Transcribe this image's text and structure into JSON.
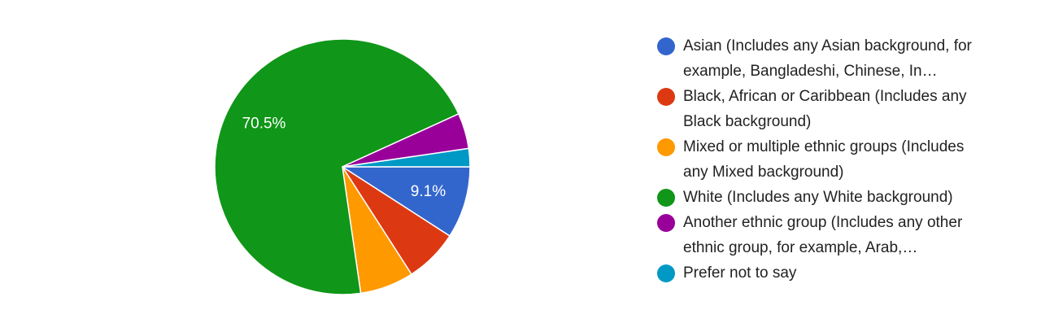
{
  "chart_data": {
    "type": "pie",
    "categories": [
      "Asian (Includes any Asian background, for example, Bangladeshi, Chinese, In…",
      "Black, African or Caribbean (Includes any Black background)",
      "Mixed or multiple ethnic groups (Includes any Mixed background)",
      "White (Includes any White background)",
      "Another ethnic group (Includes any other ethnic group, for example, Arab,…",
      "Prefer not to say"
    ],
    "values": [
      9.1,
      6.8,
      6.8,
      70.5,
      4.5,
      2.3
    ],
    "value_labels": [
      "9.1%",
      null,
      null,
      "70.5%",
      null,
      null
    ],
    "colors": [
      "#3366cc",
      "#dc3912",
      "#ff9900",
      "#109618",
      "#990099",
      "#0099c6"
    ],
    "legend": "right"
  }
}
